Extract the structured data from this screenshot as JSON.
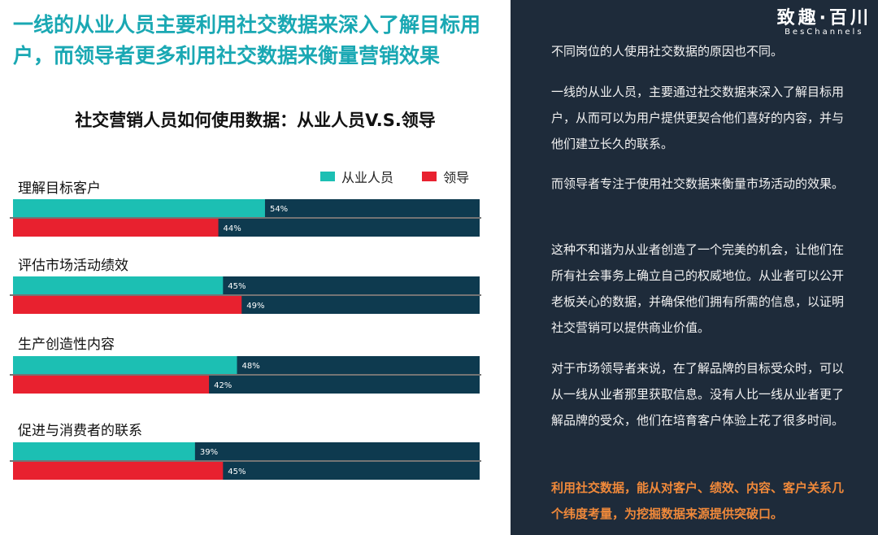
{
  "headline": "一线的从业人员主要利用社交数据来深入了解目标用户，而领导者更多利用社交数据来衡量营销效果",
  "brand": {
    "name_cn": "致趣·百川",
    "name_en": "BesChannels"
  },
  "colors": {
    "practitioner": "#1cbfb3",
    "leader": "#e8212f",
    "track": "#0e3a4f",
    "panel": "#1e2b3a",
    "highlight": "#f0893a"
  },
  "right_panel": {
    "paragraphs": [
      "不同岗位的人使用社交数据的原因也不同。",
      "一线的从业人员，主要通过社交数据来深入了解目标用户，从而可以为用户提供更契合他们喜好的内容，并与他们建立长久的联系。",
      "而领导者专注于使用社交数据来衡量市场活动的效果。",
      "这种不和谐为从业者创造了一个完美的机会，让他们在所有社会事务上确立自己的权威地位。从业者可以公开老板关心的数据，并确保他们拥有所需的信息，以证明社交营销可以提供商业价值。",
      "对于市场领导者来说，在了解品牌的目标受众时，可以从一线从业者那里获取信息。没有人比一线从业者更了解品牌的受众，他们在培育客户体验上花了很多时间。"
    ],
    "highlight": "利用社交数据，能从对客户、绩效、内容、客户关系几个纬度考量，为挖掘数据来源提供突破口。"
  },
  "chart_data": {
    "type": "bar",
    "orientation": "horizontal",
    "title": "社交营销人员如何使用数据：从业人员V.S.领导",
    "categories": [
      "理解目标客户",
      "评估市场活动绩效",
      "生产创造性内容",
      "促进与消费者的联系"
    ],
    "series": [
      {
        "name": "从业人员",
        "values": [
          54,
          45,
          48,
          39
        ],
        "labels": [
          "54%",
          "45%",
          "48%",
          "39%"
        ]
      },
      {
        "name": "领导",
        "values": [
          44,
          49,
          42,
          45
        ],
        "labels": [
          "44%",
          "49%",
          "42%",
          "45%"
        ]
      }
    ],
    "xlim": [
      0,
      100
    ],
    "legend": "top-right",
    "grid": false
  }
}
